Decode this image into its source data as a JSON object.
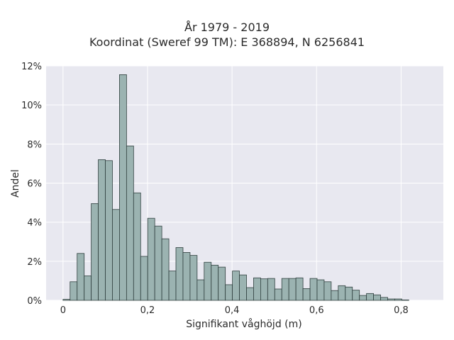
{
  "chart_data": {
    "type": "bar",
    "title": [
      "År 1979 - 2019",
      "Koordinat (Sweref 99 TM): E 368894, N 6256841"
    ],
    "xlabel": "Signifikant våghöjd (m)",
    "ylabel": "Andel",
    "xlim": [
      -0.04,
      0.9
    ],
    "ylim": [
      0,
      12
    ],
    "x_ticks": [
      0,
      0.2,
      0.4,
      0.6,
      0.8
    ],
    "x_tick_labels": [
      "0",
      "0,2",
      "0,4",
      "0,6",
      "0,8"
    ],
    "y_ticks": [
      0,
      2,
      4,
      6,
      8,
      10,
      12
    ],
    "y_tick_labels": [
      "0%",
      "2%",
      "4%",
      "6%",
      "8%",
      "10%",
      "12%"
    ],
    "grid": true,
    "bar_color": "#9bb3b1",
    "edge_color": "#2f3f3e",
    "background": "#e8e8f0",
    "bin_width": 0.0167,
    "bin_start": 0,
    "values": [
      0.05,
      0.95,
      2.4,
      1.25,
      4.95,
      7.2,
      7.15,
      4.65,
      11.55,
      7.9,
      5.5,
      2.25,
      4.2,
      3.8,
      3.15,
      1.5,
      2.7,
      2.45,
      2.3,
      1.05,
      1.95,
      1.8,
      1.7,
      0.8,
      1.5,
      1.3,
      0.65,
      1.15,
      1.1,
      1.12,
      0.58,
      1.12,
      1.12,
      1.15,
      0.6,
      1.12,
      1.05,
      0.95,
      0.5,
      0.75,
      0.68,
      0.52,
      0.25,
      0.35,
      0.28,
      0.15,
      0.07,
      0.07,
      0.02
    ]
  }
}
